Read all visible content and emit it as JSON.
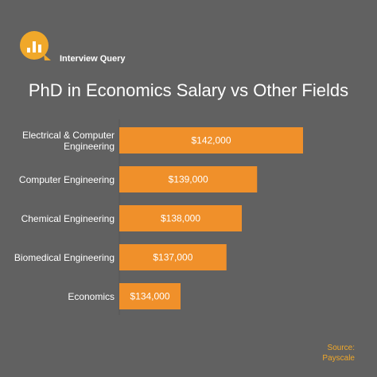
{
  "brand": "Interview Query",
  "chart_data": {
    "type": "bar",
    "orientation": "horizontal",
    "title": "PhD in Economics Salary vs Other Fields",
    "categories": [
      "Electrical & Computer Engineering",
      "Computer Engineering",
      "Chemical Engineering",
      "Biomedical Engineering",
      "Economics"
    ],
    "values": [
      142000,
      139000,
      138000,
      137000,
      134000
    ],
    "value_labels": [
      "$142,000",
      "$139,000",
      "$138,000",
      "$137,000",
      "$134,000"
    ],
    "color": "#f0902a",
    "xlim": [
      130000,
      142000
    ]
  },
  "source": {
    "label": "Source:",
    "name": "Payscale"
  }
}
